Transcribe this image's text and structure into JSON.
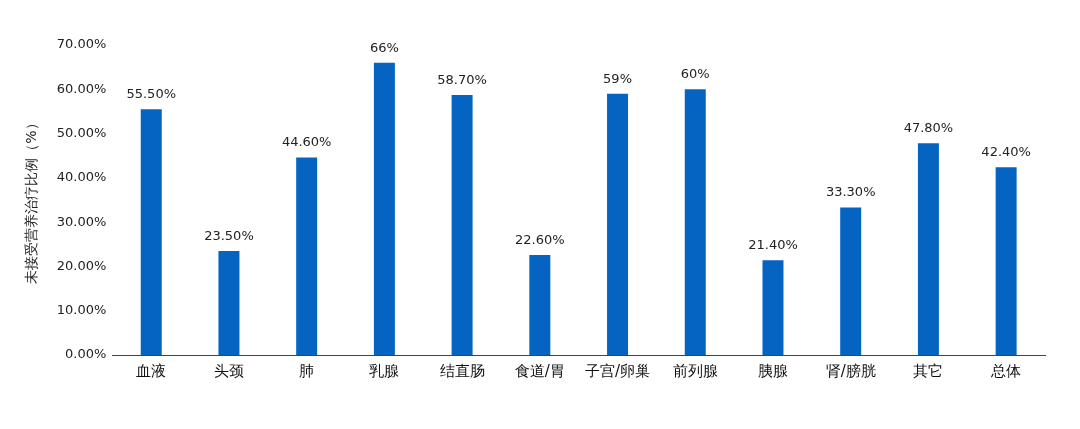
{
  "chart_data": {
    "type": "bar",
    "ylabel": "未接受营养治疗比例（%）",
    "categories": [
      "血液",
      "头颈",
      "肺",
      "乳腺",
      "结直肠",
      "食道/胃",
      "子宫/卵巢",
      "前列腺",
      "胰腺",
      "肾/膀胱",
      "其它",
      "总体"
    ],
    "values": [
      55.5,
      23.5,
      44.6,
      66,
      58.7,
      22.6,
      59,
      60,
      21.4,
      33.3,
      47.8,
      42.4
    ],
    "value_labels": [
      "55.50%",
      "23.50%",
      "44.60%",
      "66%",
      "58.70%",
      "22.60%",
      "59%",
      "60%",
      "21.40%",
      "33.30%",
      "47.80%",
      "42.40%"
    ],
    "color": "#0563c1",
    "ylim": [
      0,
      70
    ],
    "yticks": [
      {
        "value": 0,
        "label": "0.00%"
      },
      {
        "value": 10,
        "label": "10.00%"
      },
      {
        "value": 20,
        "label": "20.00%"
      },
      {
        "value": 30,
        "label": "30.00%"
      },
      {
        "value": 40,
        "label": "40.00%"
      },
      {
        "value": 50,
        "label": "50.00%"
      },
      {
        "value": 60,
        "label": "60.00%"
      },
      {
        "value": 70,
        "label": "70.00%"
      }
    ],
    "grid": false,
    "legend": false
  }
}
